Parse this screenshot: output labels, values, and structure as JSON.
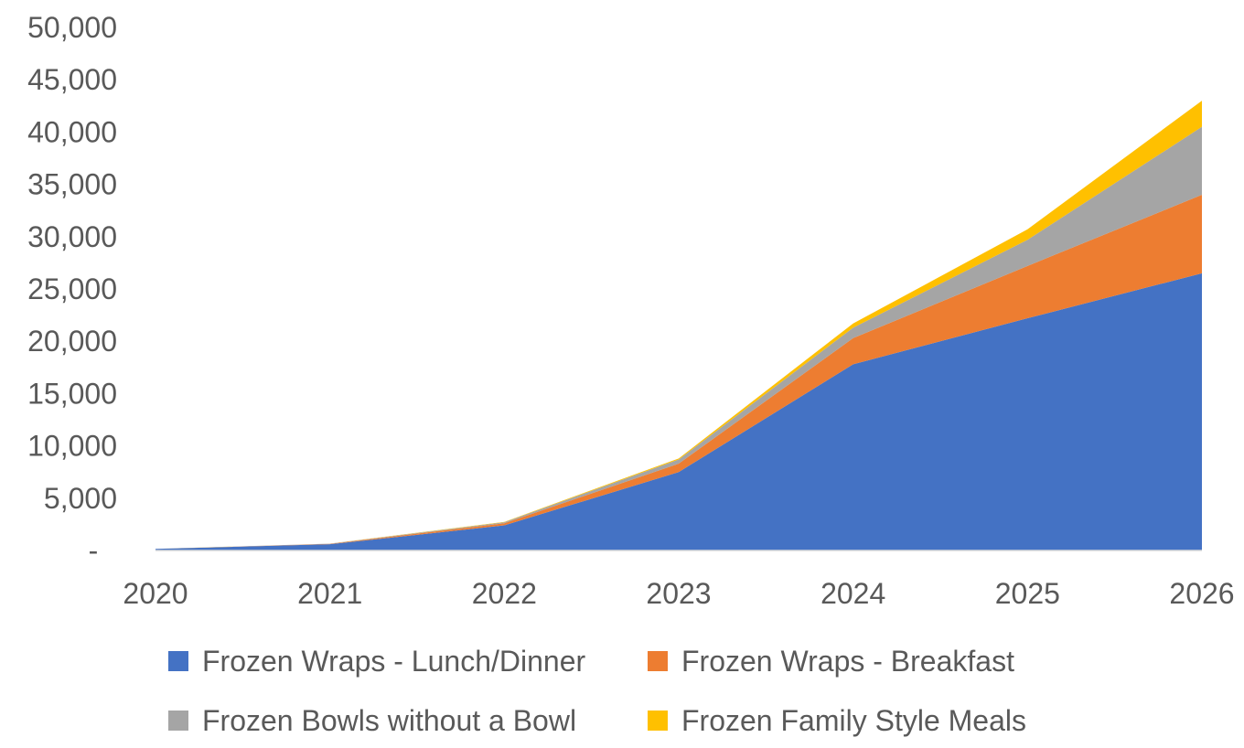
{
  "chart_data": {
    "type": "area",
    "stacked": true,
    "x": [
      "2020",
      "2021",
      "2022",
      "2023",
      "2024",
      "2025",
      "2026"
    ],
    "y_tick_labels": [
      "-",
      "5,000",
      "10,000",
      "15,000",
      "20,000",
      "25,000",
      "30,000",
      "35,000",
      "40,000",
      "45,000",
      "50,000"
    ],
    "y_ticks": [
      0,
      5000,
      10000,
      15000,
      20000,
      25000,
      30000,
      35000,
      40000,
      45000,
      50000
    ],
    "ylim": [
      0,
      50000
    ],
    "grid": false,
    "legend_position": "bottom",
    "series": [
      {
        "name": "Frozen Wraps - Lunch/Dinner",
        "color": "#4472C4",
        "values": [
          150,
          600,
          2400,
          7500,
          17800,
          22200,
          26500
        ]
      },
      {
        "name": "Frozen Wraps - Breakfast",
        "color": "#ED7D31",
        "values": [
          0,
          30,
          200,
          800,
          2500,
          5000,
          7500
        ]
      },
      {
        "name": "Frozen Bowls without a Bowl",
        "color": "#A5A5A5",
        "values": [
          0,
          20,
          100,
          400,
          1000,
          2500,
          6500
        ]
      },
      {
        "name": "Frozen Family Style Meals",
        "color": "#FFC000",
        "values": [
          0,
          10,
          30,
          100,
          400,
          1000,
          2500
        ]
      }
    ]
  }
}
